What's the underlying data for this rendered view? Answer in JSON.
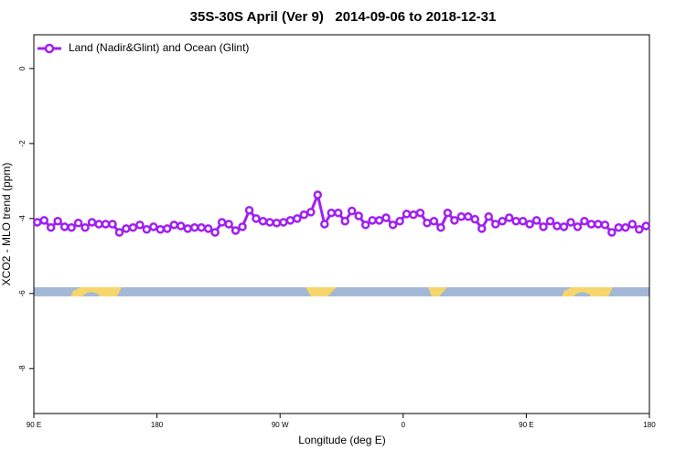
{
  "chart_data": {
    "type": "line",
    "title": "35S-30S April (Ver 9)   2014-09-06 to 2018-12-31",
    "xlabel": "Longitude (deg E)",
    "ylabel": "XCO2 - MLO trend (ppm)",
    "xlim": [
      90,
      540
    ],
    "ylim": [
      -9.2,
      0.9
    ],
    "xticks": [
      {
        "value": 90,
        "label": "90 E"
      },
      180,
      {
        "value": 270,
        "label": "90 W"
      },
      {
        "value": 360,
        "label": "0"
      },
      {
        "value": 450,
        "label": "90 E"
      },
      {
        "value": 540,
        "label": "180"
      }
    ],
    "yticks": [
      -8,
      -6,
      -4,
      -2,
      0
    ],
    "legend": "top-left",
    "x": [
      92.5,
      97.5,
      102.5,
      107.5,
      112.5,
      117.5,
      122.5,
      127.5,
      132.5,
      137.5,
      142.5,
      147.5,
      152.5,
      157.5,
      162.5,
      167.5,
      172.5,
      177.5,
      182.5,
      187.5,
      192.5,
      197.5,
      202.5,
      207.5,
      212.5,
      217.5,
      222.5,
      227.5,
      232.5,
      237.5,
      242.5,
      247.5,
      252.5,
      257.5,
      262.5,
      267.5,
      272.5,
      277.5,
      282.5,
      287.5,
      292.5,
      297.5,
      302.5,
      307.5,
      312.5,
      317.5,
      322.5,
      327.5,
      332.5,
      337.5,
      342.5,
      347.5,
      352.5,
      357.5,
      362.5,
      367.5,
      372.5,
      377.5,
      382.5,
      387.5,
      392.5,
      397.5,
      402.5,
      407.5,
      412.5,
      417.5,
      422.5,
      427.5,
      432.5,
      437.5,
      442.5,
      447.5,
      452.5,
      457.5,
      462.5,
      467.5,
      472.5,
      477.5,
      482.5,
      487.5,
      492.5,
      497.5,
      502.5,
      507.5,
      512.5,
      517.5,
      522.5,
      527.5,
      532.5,
      537.5
    ],
    "series": [
      {
        "name": "Land (Nadir&Glint) and Ocean (Glint)",
        "color": "#a020f0",
        "values": [
          -4.1,
          -4.05,
          -4.24,
          -4.07,
          -4.22,
          -4.24,
          -4.12,
          -4.24,
          -4.1,
          -4.15,
          -4.15,
          -4.15,
          -4.37,
          -4.27,
          -4.24,
          -4.17,
          -4.29,
          -4.22,
          -4.29,
          -4.27,
          -4.17,
          -4.2,
          -4.27,
          -4.24,
          -4.24,
          -4.27,
          -4.37,
          -4.1,
          -4.15,
          -4.32,
          -4.22,
          -3.78,
          -4.0,
          -4.07,
          -4.1,
          -4.12,
          -4.1,
          -4.05,
          -4.0,
          -3.9,
          -3.83,
          -3.37,
          -4.15,
          -3.85,
          -3.85,
          -4.07,
          -3.8,
          -3.93,
          -4.17,
          -4.05,
          -4.05,
          -3.98,
          -4.17,
          -4.07,
          -3.88,
          -3.9,
          -3.85,
          -4.12,
          -4.07,
          -4.24,
          -3.85,
          -4.05,
          -3.95,
          -3.95,
          -4.02,
          -4.27,
          -3.95,
          -4.15,
          -4.07,
          -3.98,
          -4.07,
          -4.07,
          -4.15,
          -4.05,
          -4.22,
          -4.07,
          -4.2,
          -4.22,
          -4.1,
          -4.22,
          -4.07,
          -4.15,
          -4.15,
          -4.17,
          -4.37,
          -4.24,
          -4.24,
          -4.15,
          -4.29,
          -4.2
        ]
      }
    ]
  }
}
